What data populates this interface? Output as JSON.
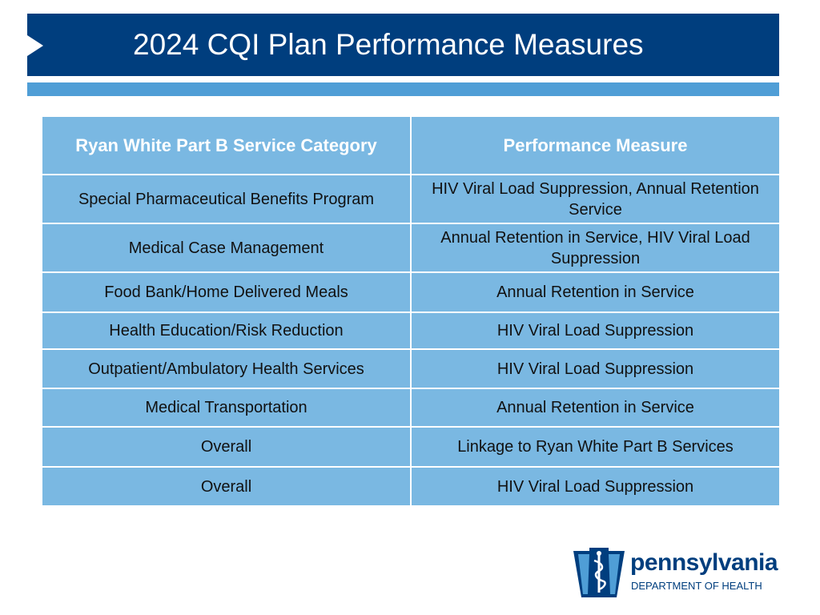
{
  "title": "2024 CQI Plan Performance Measures",
  "table": {
    "headers": [
      "Ryan White Part B Service Category",
      "Performance Measure"
    ],
    "rows": [
      {
        "category": "Special Pharmaceutical Benefits Program",
        "measure": "HIV Viral Load Suppression,          Annual Retention Service"
      },
      {
        "category": "Medical Case Management",
        "measure": "Annual Retention in Service,              HIV Viral Load Suppression"
      },
      {
        "category": "Food Bank/Home Delivered Meals",
        "measure": "Annual Retention in Service"
      },
      {
        "category": "Health Education/Risk Reduction",
        "measure": "HIV Viral Load Suppression"
      },
      {
        "category": "Outpatient/Ambulatory Health Services",
        "measure": "HIV Viral Load Suppression"
      },
      {
        "category": "Medical Transportation",
        "measure": "Annual Retention in Service"
      },
      {
        "category": "Overall",
        "measure": "Linkage to Ryan White Part B Services"
      },
      {
        "category": "Overall",
        "measure": "HIV Viral Load Suppression"
      }
    ]
  },
  "logo": {
    "name": "pennsylvania",
    "department": "DEPARTMENT OF HEALTH",
    "icon": "keystone-caduceus-icon"
  },
  "colors": {
    "title_bar": "#003e7e",
    "accent_bar": "#4f9ed6",
    "table_cell": "#7ab8e2"
  }
}
